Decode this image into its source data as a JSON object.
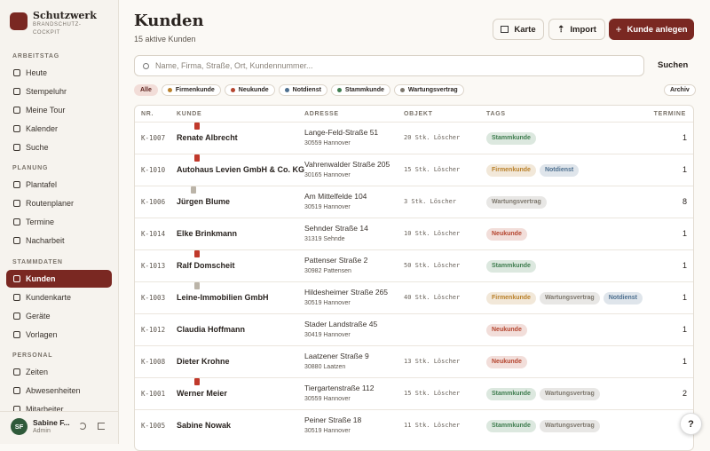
{
  "brand": {
    "title": "Schutzwerk",
    "subtitle": "BRANDSCHUTZ-COCKPIT"
  },
  "nav": [
    {
      "title": "ARBEITSTAG",
      "items": [
        "Heute",
        "Stempeluhr",
        "Meine Tour",
        "Kalender",
        "Suche"
      ]
    },
    {
      "title": "PLANUNG",
      "items": [
        "Plantafel",
        "Routenplaner",
        "Termine",
        "Nacharbeit"
      ]
    },
    {
      "title": "STAMMDATEN",
      "items": [
        "Kunden",
        "Kundenkarte",
        "Geräte",
        "Vorlagen"
      ]
    },
    {
      "title": "PERSONAL",
      "items": [
        "Zeiten",
        "Abwesenheiten",
        "Mitarbeiter"
      ]
    }
  ],
  "user": {
    "initials": "SF",
    "name": "Sabine F...",
    "role": "Admin"
  },
  "header": {
    "title": "Kunden",
    "subtitle": "15 aktive Kunden",
    "buttons": [
      "Karte",
      "Import",
      "Kunde anlegen"
    ]
  },
  "search": {
    "placeholder": "Name, Firma, Straße, Ort, Kundennummer...",
    "button": "Suchen"
  },
  "filters": [
    {
      "label": "Alle"
    },
    {
      "label": "Firmenkunde",
      "color": "#b9802a"
    },
    {
      "label": "Neukunde",
      "color": "#b5452f"
    },
    {
      "label": "Notdienst",
      "color": "#4d6f8f"
    },
    {
      "label": "Stammkunde",
      "color": "#3f7d4f"
    },
    {
      "label": "Wartungsvertrag",
      "color": "#7d776d"
    }
  ],
  "archive": "Archiv",
  "table": {
    "columns": [
      "NR.",
      "KUNDE",
      "ADRESSE",
      "OBJEKT",
      "TAGS",
      "TERMINE"
    ],
    "rows": [
      {
        "nr": "K-1007",
        "name": "Renate Albrecht",
        "street": "Lange-Feld-Straße 51",
        "city": "30559 Hannover",
        "object": "20 Stk. Löscher",
        "tags": [
          "Stammkunde"
        ],
        "termine": 1
      },
      {
        "nr": "K-1010",
        "name": "Autohaus Levien GmbH & Co. KG",
        "street": "Vahrenwalder Straße 205",
        "city": "30165 Hannover",
        "object": "15 Stk. Löscher",
        "tags": [
          "Firmenkunde",
          "Notdienst"
        ],
        "termine": 1
      },
      {
        "nr": "K-1006",
        "name": "Jürgen Blume",
        "street": "Am Mittelfelde 104",
        "city": "30519 Hannover",
        "object": "3 Stk. Löscher",
        "tags": [
          "Wartungsvertrag"
        ],
        "termine": 8
      },
      {
        "nr": "K-1014",
        "name": "Elke Brinkmann",
        "street": "Sehnder Straße 14",
        "city": "31319 Sehnde",
        "object": "10 Stk. Löscher",
        "tags": [
          "Neukunde"
        ],
        "termine": 1
      },
      {
        "nr": "K-1013",
        "name": "Ralf Domscheit",
        "street": "Pattenser Straße 2",
        "city": "30982 Pattensen",
        "object": "50 Stk. Löscher",
        "tags": [
          "Stammkunde"
        ],
        "termine": 1
      },
      {
        "nr": "K-1003",
        "name": "Leine-Immobilien GmbH",
        "street": "Hildesheimer Straße 265",
        "city": "30519 Hannover",
        "object": "40 Stk. Löscher",
        "tags": [
          "Firmenkunde",
          "Wartungsvertrag",
          "Notdienst"
        ],
        "termine": 1
      },
      {
        "nr": "K-1012",
        "name": "Claudia Hoffmann",
        "street": "Stader Landstraße 45",
        "city": "30419 Hannover",
        "tags": [
          "Neukunde"
        ],
        "termine": 1
      },
      {
        "nr": "K-1008",
        "name": "Dieter Krohne",
        "street": "Laatzener Straße 9",
        "city": "30880 Laatzen",
        "object": "13 Stk. Löscher",
        "tags": [
          "Neukunde"
        ],
        "termine": 1
      },
      {
        "nr": "K-1001",
        "name": "Werner Meier",
        "street": "Tiergartenstraße 112",
        "city": "30559 Hannover",
        "object": "15 Stk. Löscher",
        "tags": [
          "Stammkunde",
          "Wartungsvertrag"
        ],
        "termine": 2
      },
      {
        "nr": "K-1005",
        "name": "Sabine Nowak",
        "street": "Peiner Straße 18",
        "city": "30519 Hannover",
        "object": "11 Stk. Löscher",
        "tags": [
          "Stammkunde",
          "Wartungsvertrag"
        ],
        "termine": 1
      }
    ]
  },
  "help": "?"
}
